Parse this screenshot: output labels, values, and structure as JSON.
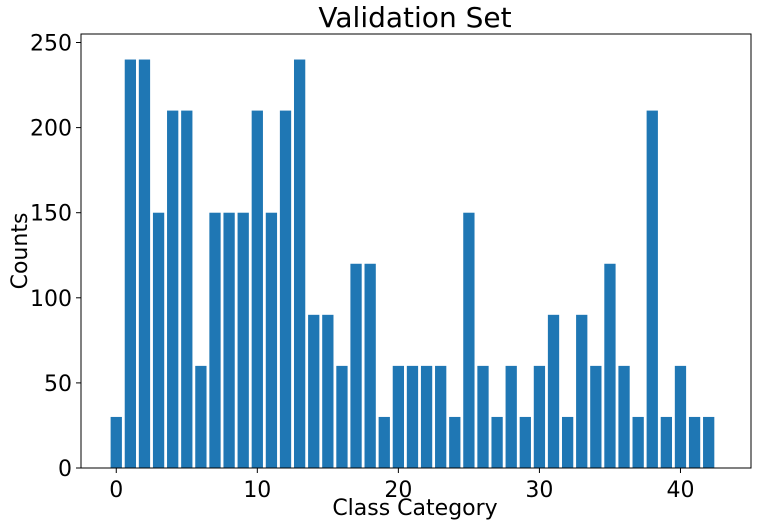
{
  "chart_data": {
    "type": "bar",
    "title": "Validation Set",
    "xlabel": "Class Category",
    "ylabel": "Counts",
    "categories": [
      0,
      1,
      2,
      3,
      4,
      5,
      6,
      7,
      8,
      9,
      10,
      11,
      12,
      13,
      14,
      15,
      16,
      17,
      18,
      19,
      20,
      21,
      22,
      23,
      24,
      25,
      26,
      27,
      28,
      29,
      30,
      31,
      32,
      33,
      34,
      35,
      36,
      37,
      38,
      39,
      40,
      41,
      42
    ],
    "values": [
      30,
      240,
      240,
      150,
      210,
      210,
      60,
      150,
      150,
      150,
      210,
      150,
      210,
      240,
      90,
      90,
      60,
      120,
      120,
      30,
      60,
      60,
      60,
      60,
      30,
      150,
      60,
      30,
      60,
      30,
      60,
      90,
      30,
      90,
      60,
      120,
      60,
      30,
      210,
      30,
      60,
      30,
      30
    ],
    "xlim": [
      -2.5,
      45
    ],
    "ylim": [
      0,
      255
    ],
    "xticks": [
      0,
      10,
      20,
      30,
      40
    ],
    "yticks": [
      0,
      50,
      100,
      150,
      200,
      250
    ],
    "bar_color": "#1f77b4",
    "grid": false,
    "legend": "none"
  }
}
